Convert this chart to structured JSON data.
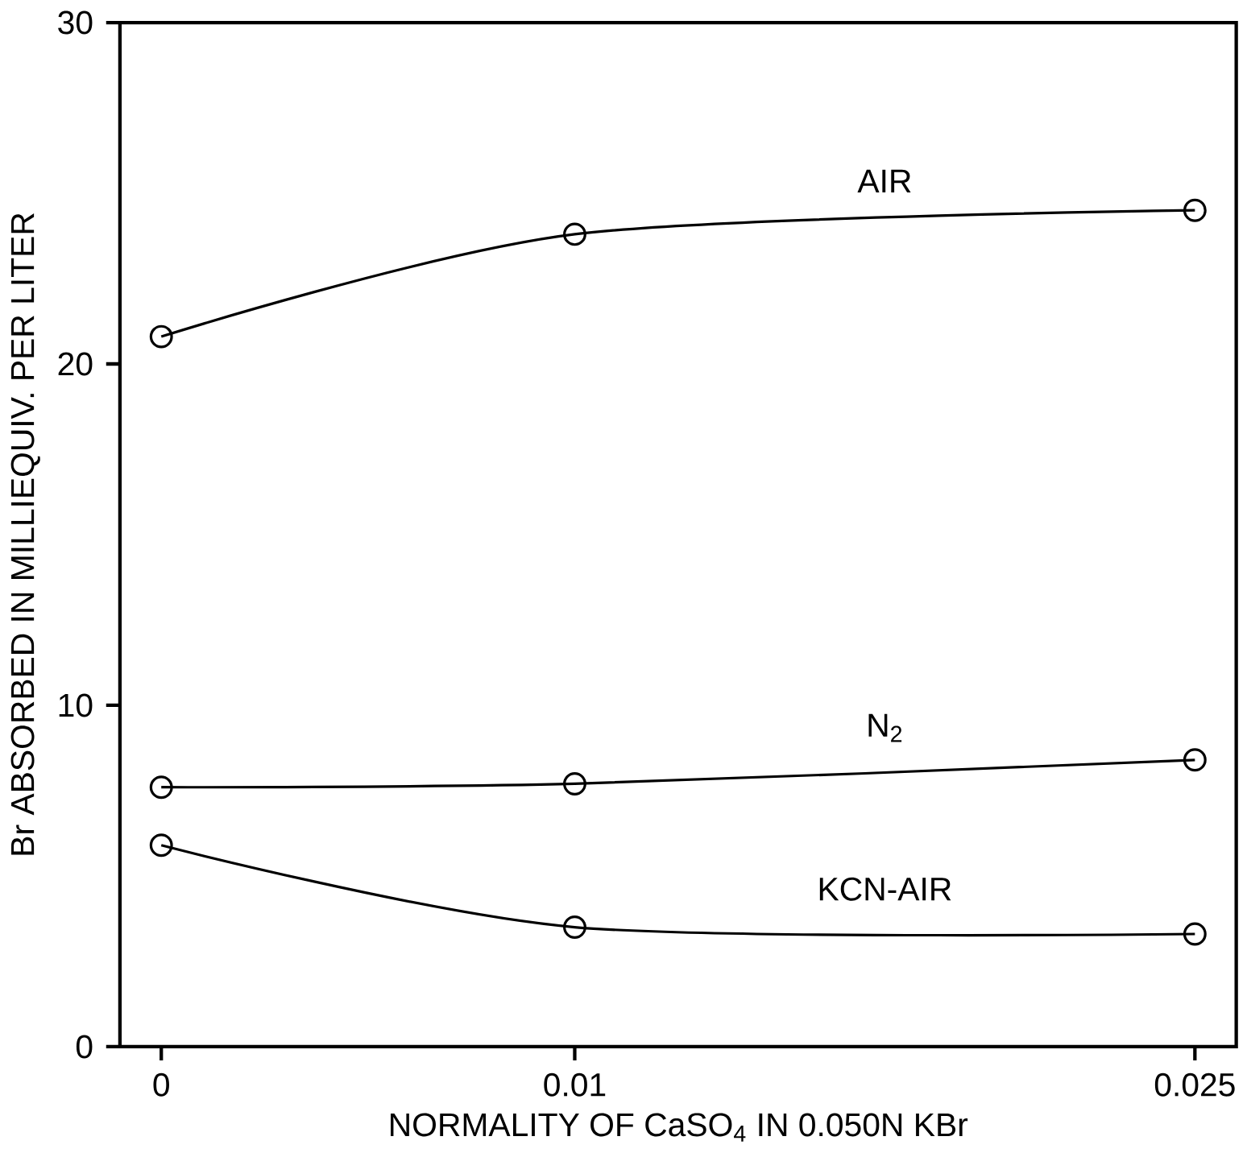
{
  "chart_data": {
    "type": "line",
    "xlabel": "NORMALITY OF CaSO$_{4}$ IN 0.050N KBr",
    "ylabel": "Br ABSORBED IN MILLIEQUIV. PER LITER",
    "x": [
      0,
      0.01,
      0.025
    ],
    "series": [
      {
        "name": "AIR",
        "color": "#000000",
        "values": [
          20.8,
          23.8,
          24.5
        ]
      },
      {
        "name": "N$_{2}$",
        "color": "#000000",
        "values": [
          7.6,
          7.7,
          8.4
        ]
      },
      {
        "name": "KCN-AIR",
        "color": "#000000",
        "values": [
          5.9,
          3.5,
          3.3
        ]
      }
    ],
    "xlim": [
      -0.001,
      0.026
    ],
    "ylim": [
      0,
      30
    ],
    "xticks": [
      0,
      0.01,
      0.025
    ],
    "yticks": [
      0,
      10,
      20,
      30
    ],
    "marker": "circle",
    "line_style": "solid",
    "grid": false,
    "legend": false
  }
}
